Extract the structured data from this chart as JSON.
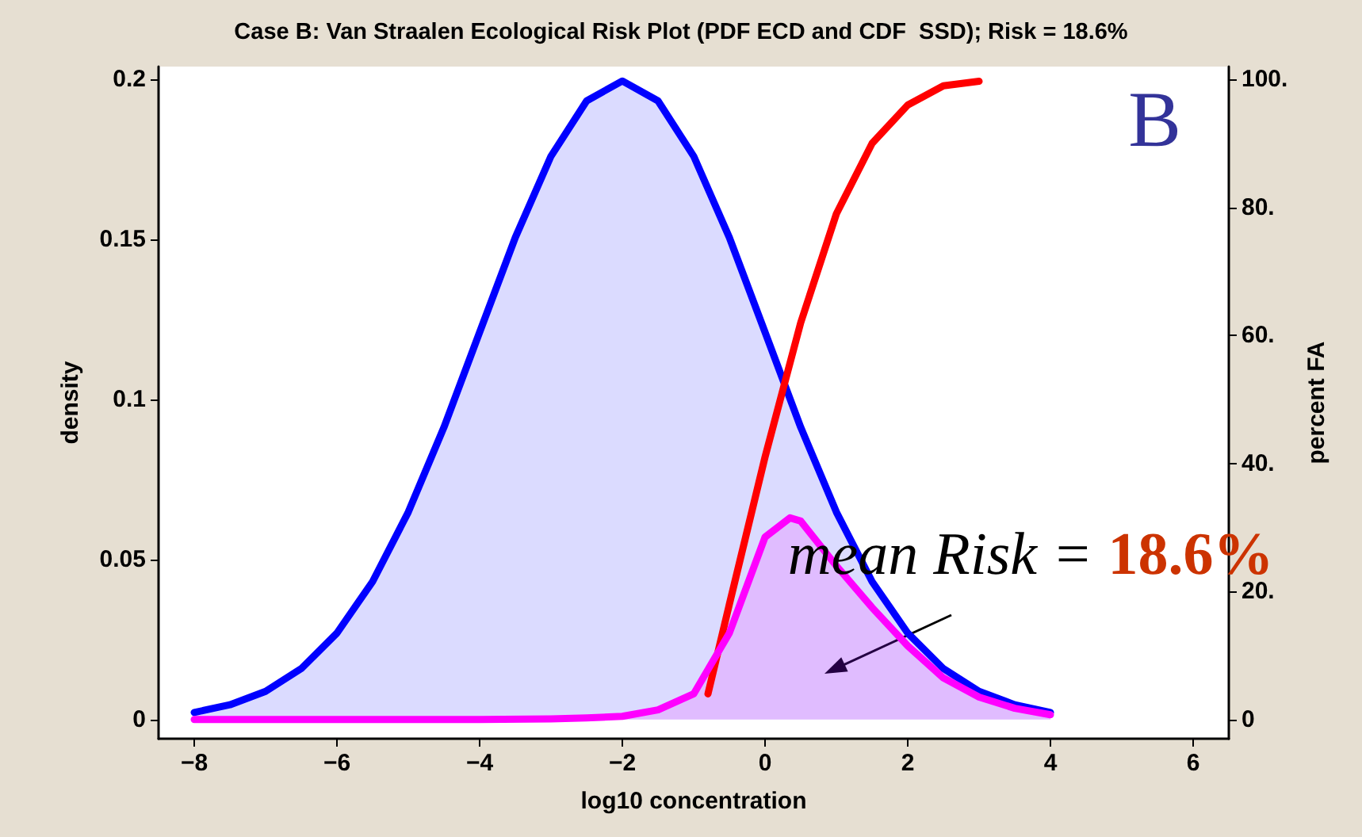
{
  "chart_data": {
    "type": "area",
    "title": "Case B: Van Straalen Ecological Risk Plot (PDF ECD and CDF  SSD); Risk = 18.6%",
    "xlabel": "log10 concentration",
    "ylabel": "density",
    "y2label": "percent FA",
    "xlim": [
      -8.5,
      6.5
    ],
    "xticks": [
      -8,
      -6,
      -4,
      -2,
      0,
      2,
      4,
      6
    ],
    "ylim": [
      -0.006,
      0.204
    ],
    "yticks": [
      0,
      0.05,
      0.1,
      0.15,
      0.2
    ],
    "y2lim": [
      -3,
      102
    ],
    "y2ticks": [
      0,
      {
        "value": 20,
        "label": "20."
      },
      {
        "value": 40,
        "label": "40."
      },
      {
        "value": 60,
        "label": "60."
      },
      {
        "value": 80,
        "label": "80."
      },
      {
        "value": 100,
        "label": "100."
      }
    ],
    "grid": false,
    "marker": "none",
    "line_style": "solid",
    "series": [
      {
        "color": "#0000ff",
        "x": [
          -8,
          -7.5,
          -7,
          -6.5,
          -6,
          -5.5,
          -5,
          -4.5,
          -4,
          -3.5,
          -3,
          -2.5,
          -2,
          -1.5,
          -1,
          -0.5,
          0,
          0.5,
          1,
          1.5,
          2,
          2.5,
          3,
          3.5,
          4
        ],
        "values": [
          0.0022,
          0.0046,
          0.0088,
          0.0159,
          0.027,
          0.0431,
          0.0648,
          0.0913,
          0.121,
          0.1506,
          0.176,
          0.1933,
          0.1995,
          0.1933,
          0.176,
          0.1506,
          0.121,
          0.0913,
          0.0648,
          0.0431,
          0.027,
          0.0159,
          0.0088,
          0.0046,
          0.0022
        ]
      },
      {
        "type": "line",
        "axis": "y2",
        "color": "#ff0000",
        "x": [
          -0.8,
          -0.5,
          0,
          0.5,
          1,
          1.5,
          2,
          2.5,
          3
        ],
        "values": [
          4,
          18,
          41,
          62,
          79,
          90,
          96,
          99,
          99.7
        ]
      },
      {
        "color": "#ff00ff",
        "x": [
          -8,
          -6,
          -4,
          -3,
          -2.5,
          -2,
          -1.5,
          -1,
          -0.5,
          0,
          0.35,
          0.5,
          1,
          1.5,
          2,
          2.5,
          3,
          3.5,
          4
        ],
        "values": [
          0,
          0,
          0,
          0.0002,
          0.0005,
          0.001,
          0.003,
          0.008,
          0.027,
          0.057,
          0.063,
          0.062,
          0.048,
          0.035,
          0.023,
          0.013,
          0.007,
          0.0035,
          0.0015
        ]
      }
    ],
    "annotations": [
      "mean Risk = 18.6%",
      "B"
    ]
  }
}
